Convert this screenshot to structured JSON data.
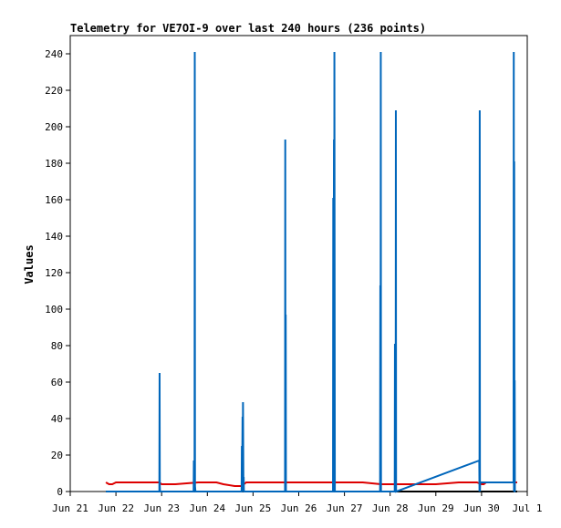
{
  "chart_data": {
    "type": "line",
    "title": "Telemetry for VE7OI-9 over last 240 hours (236 points)",
    "xlabel": "",
    "ylabel": "Values",
    "ylim": [
      0,
      250
    ],
    "yticks": [
      0,
      20,
      40,
      60,
      80,
      100,
      120,
      140,
      160,
      180,
      200,
      220,
      240
    ],
    "xlim": [
      "Jun 21",
      "Jul 1"
    ],
    "xticks": [
      "Jun 21",
      "Jun 22",
      "Jun 23",
      "Jun 24",
      "Jun 25",
      "Jun 26",
      "Jun 27",
      "Jun 28",
      "Jun 29",
      "Jun 30",
      "Jul 1"
    ],
    "grid": false,
    "legend": "none",
    "series": [
      {
        "color": "#000000",
        "x": [
          0.78,
          1.1,
          1.6,
          2.0,
          2.5,
          3.0,
          3.5,
          4.0,
          4.5,
          5.0,
          5.5,
          6.0,
          6.5,
          7.0,
          7.5,
          8.0,
          8.5,
          9.0,
          9.5,
          9.78
        ],
        "y": [
          0,
          0,
          0,
          0,
          0,
          0,
          0,
          0,
          0,
          0,
          0,
          0,
          0,
          0,
          0,
          0,
          0,
          0,
          0,
          0
        ]
      },
      {
        "color": "#dd0000",
        "x": [
          0.78,
          0.85,
          0.92,
          1.0,
          1.5,
          1.95,
          2.0,
          2.3,
          2.8,
          3.0,
          3.2,
          3.35,
          3.6,
          3.75,
          3.85,
          3.95,
          4.3,
          4.6,
          5.0,
          5.3,
          5.4,
          5.8,
          6.1,
          6.4,
          6.8,
          7.0,
          7.1,
          7.5,
          8.0,
          8.5,
          8.6,
          8.9,
          9.0,
          9.05,
          9.1,
          9.5,
          9.78
        ],
        "y": [
          5,
          4,
          4,
          5,
          5,
          5,
          4,
          4,
          5,
          5,
          5,
          4,
          3,
          3,
          5,
          5,
          5,
          5,
          5,
          5,
          5,
          5,
          5,
          5,
          4,
          4,
          4,
          4,
          4,
          5,
          5,
          5,
          4,
          4,
          5,
          5,
          5
        ]
      },
      {
        "color": "#0066bb",
        "x": [
          0.78,
          1.95,
          1.955,
          1.96,
          1.965,
          2.7,
          2.705,
          2.72,
          2.725,
          2.73,
          2.74,
          2.745,
          2.75,
          3.75,
          3.755,
          3.76,
          3.77,
          3.775,
          3.78,
          3.79,
          3.795,
          3.8,
          3.81,
          3.815,
          3.82,
          3.825,
          3.83,
          4.7,
          4.705,
          4.71,
          4.715,
          4.72,
          5.75,
          5.755,
          5.76,
          5.77,
          5.775,
          5.78,
          5.79,
          5.8,
          5.805,
          5.81,
          5.82,
          6.78,
          6.785,
          6.79,
          6.795,
          6.8,
          6.81,
          6.815,
          6.82,
          7.1,
          7.105,
          7.11,
          7.12,
          7.125,
          7.13,
          8.95,
          8.955,
          8.96,
          8.965,
          8.97,
          9.7,
          9.705,
          9.71,
          9.715,
          9.72,
          9.725,
          9.73,
          9.735,
          9.74
        ],
        "y": [
          0,
          0,
          65,
          3,
          0,
          0,
          17,
          0,
          241,
          3,
          0,
          0,
          0,
          0,
          25,
          0,
          41,
          0,
          49,
          0,
          8,
          0,
          0,
          0,
          0,
          0,
          0,
          0,
          193,
          0,
          97,
          0,
          0,
          161,
          0,
          193,
          0,
          241,
          0,
          0,
          0,
          0,
          0,
          0,
          113,
          0,
          241,
          0,
          0,
          0,
          0,
          0,
          81,
          0,
          0,
          209,
          0,
          17,
          0,
          209,
          0,
          5,
          5,
          241,
          0,
          181,
          0,
          61,
          0,
          0,
          0
        ]
      }
    ]
  }
}
